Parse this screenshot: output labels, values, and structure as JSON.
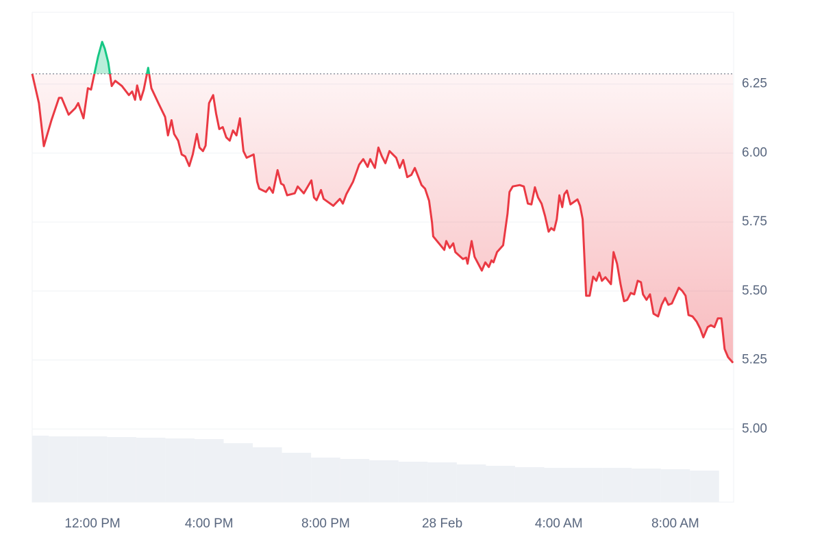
{
  "chart_data": {
    "type": "line",
    "x": [
      9.93,
      10.16,
      10.33,
      10.59,
      10.85,
      10.94,
      11.18,
      11.41,
      11.51,
      11.69,
      11.84,
      11.95,
      12.05,
      12.19,
      12.33,
      12.42,
      12.54,
      12.66,
      12.78,
      13.01,
      13.25,
      13.36,
      13.46,
      13.53,
      13.65,
      13.76,
      13.91,
      14.02,
      14.26,
      14.49,
      14.59,
      14.71,
      14.8,
      14.94,
      15.06,
      15.18,
      15.32,
      15.44,
      15.58,
      15.67,
      15.79,
      15.88,
      16.0,
      16.14,
      16.24,
      16.35,
      16.47,
      16.59,
      16.71,
      16.82,
      16.94,
      17.06,
      17.18,
      17.29,
      17.53,
      17.65,
      17.72,
      17.95,
      18.07,
      18.19,
      18.35,
      18.47,
      18.56,
      18.68,
      18.94,
      19.04,
      19.25,
      19.51,
      19.6,
      19.69,
      19.84,
      19.93,
      20.26,
      20.49,
      20.59,
      20.71,
      20.94,
      21.15,
      21.29,
      21.44,
      21.53,
      21.69,
      21.81,
      21.93,
      22.05,
      22.19,
      22.42,
      22.54,
      22.66,
      22.8,
      22.94,
      23.06,
      23.29,
      23.41,
      23.55,
      23.65,
      23.69,
      24.07,
      24.14,
      24.26,
      24.38,
      24.45,
      24.71,
      24.82,
      24.87,
      25.01,
      25.11,
      25.36,
      25.48,
      25.6,
      25.69,
      25.76,
      25.88,
      26.09,
      26.24,
      26.31,
      26.42,
      26.66,
      26.8,
      26.94,
      27.06,
      27.18,
      27.29,
      27.41,
      27.53,
      27.65,
      27.74,
      27.84,
      27.93,
      28.02,
      28.12,
      28.19,
      28.28,
      28.4,
      28.64,
      28.73,
      28.82,
      28.94,
      29.06,
      29.18,
      29.29,
      29.39,
      29.48,
      29.6,
      29.79,
      29.88,
      30.0,
      30.12,
      30.24,
      30.35,
      30.47,
      30.59,
      30.71,
      30.82,
      30.89,
      31.01,
      31.13,
      31.25,
      31.41,
      31.53,
      31.65,
      31.76,
      31.88,
      32.12,
      32.24,
      32.35,
      32.45,
      32.59,
      32.73,
      32.85,
      32.96,
      33.11,
      33.22,
      33.34,
      33.46,
      33.58,
      33.69,
      33.81,
      33.98
    ],
    "values": [
      6.287,
      6.181,
      6.025,
      6.119,
      6.2,
      6.2,
      6.139,
      6.163,
      6.181,
      6.126,
      6.235,
      6.23,
      6.28,
      6.349,
      6.403,
      6.379,
      6.329,
      6.243,
      6.262,
      6.243,
      6.21,
      6.223,
      6.193,
      6.245,
      6.193,
      6.23,
      6.309,
      6.235,
      6.181,
      6.131,
      6.064,
      6.119,
      6.069,
      6.045,
      5.995,
      5.988,
      5.953,
      5.995,
      6.069,
      6.02,
      6.007,
      6.027,
      6.181,
      6.21,
      6.144,
      6.087,
      6.094,
      6.057,
      6.045,
      6.082,
      6.064,
      6.126,
      6.007,
      5.983,
      5.995,
      5.896,
      5.871,
      5.859,
      5.876,
      5.856,
      5.938,
      5.889,
      5.884,
      5.847,
      5.854,
      5.879,
      5.854,
      5.901,
      5.839,
      5.829,
      5.866,
      5.834,
      5.809,
      5.834,
      5.817,
      5.851,
      5.896,
      5.958,
      5.978,
      5.95,
      5.978,
      5.946,
      6.02,
      5.988,
      5.963,
      6.007,
      5.983,
      5.946,
      5.975,
      5.913,
      5.921,
      5.946,
      5.884,
      5.871,
      5.827,
      5.748,
      5.698,
      5.649,
      5.681,
      5.656,
      5.673,
      5.641,
      5.616,
      5.621,
      5.599,
      5.681,
      5.624,
      5.574,
      5.604,
      5.587,
      5.611,
      5.604,
      5.641,
      5.666,
      5.78,
      5.859,
      5.879,
      5.884,
      5.879,
      5.817,
      5.814,
      5.876,
      5.839,
      5.817,
      5.772,
      5.715,
      5.728,
      5.72,
      5.76,
      5.847,
      5.804,
      5.851,
      5.864,
      5.814,
      5.832,
      5.809,
      5.76,
      5.483,
      5.483,
      5.552,
      5.537,
      5.567,
      5.537,
      5.55,
      5.525,
      5.641,
      5.599,
      5.525,
      5.463,
      5.468,
      5.493,
      5.488,
      5.537,
      5.532,
      5.488,
      5.468,
      5.488,
      5.418,
      5.408,
      5.45,
      5.475,
      5.45,
      5.455,
      5.512,
      5.5,
      5.483,
      5.413,
      5.408,
      5.389,
      5.364,
      5.332,
      5.369,
      5.376,
      5.369,
      5.401,
      5.401,
      5.29,
      5.26,
      5.24
    ],
    "baseline": 6.287,
    "colors": {
      "up": "#16c784",
      "down": "#ea3943"
    },
    "volume": {
      "x": [
        10,
        11,
        12,
        13,
        14,
        15,
        16,
        17,
        18,
        19,
        20,
        21,
        22,
        23,
        24,
        25,
        26,
        27,
        28,
        29,
        30,
        31,
        32,
        33
      ],
      "values": [
        97,
        96,
        96,
        95,
        94,
        93,
        92,
        86,
        80,
        72,
        65,
        63,
        61,
        59,
        58,
        55,
        53,
        51,
        50,
        50,
        50,
        49,
        48,
        46
      ]
    },
    "xlim": [
      9.93,
      34
    ],
    "xticks": [
      {
        "value": 12,
        "label": "12:00 PM"
      },
      {
        "value": 16,
        "label": "4:00 PM"
      },
      {
        "value": 20,
        "label": "8:00 PM"
      },
      {
        "value": 24,
        "label": "28 Feb"
      },
      {
        "value": 28,
        "label": "4:00 AM"
      },
      {
        "value": 32,
        "label": "8:00 AM"
      }
    ],
    "ylim": [
      4.735,
      6.51
    ],
    "yticks": [
      {
        "value": 5,
        "label": "5.00"
      },
      5.25,
      {
        "value": 5.5,
        "label": "5.50"
      },
      5.75,
      {
        "value": 6,
        "label": "6.00"
      },
      6.25
    ],
    "grid": true
  }
}
